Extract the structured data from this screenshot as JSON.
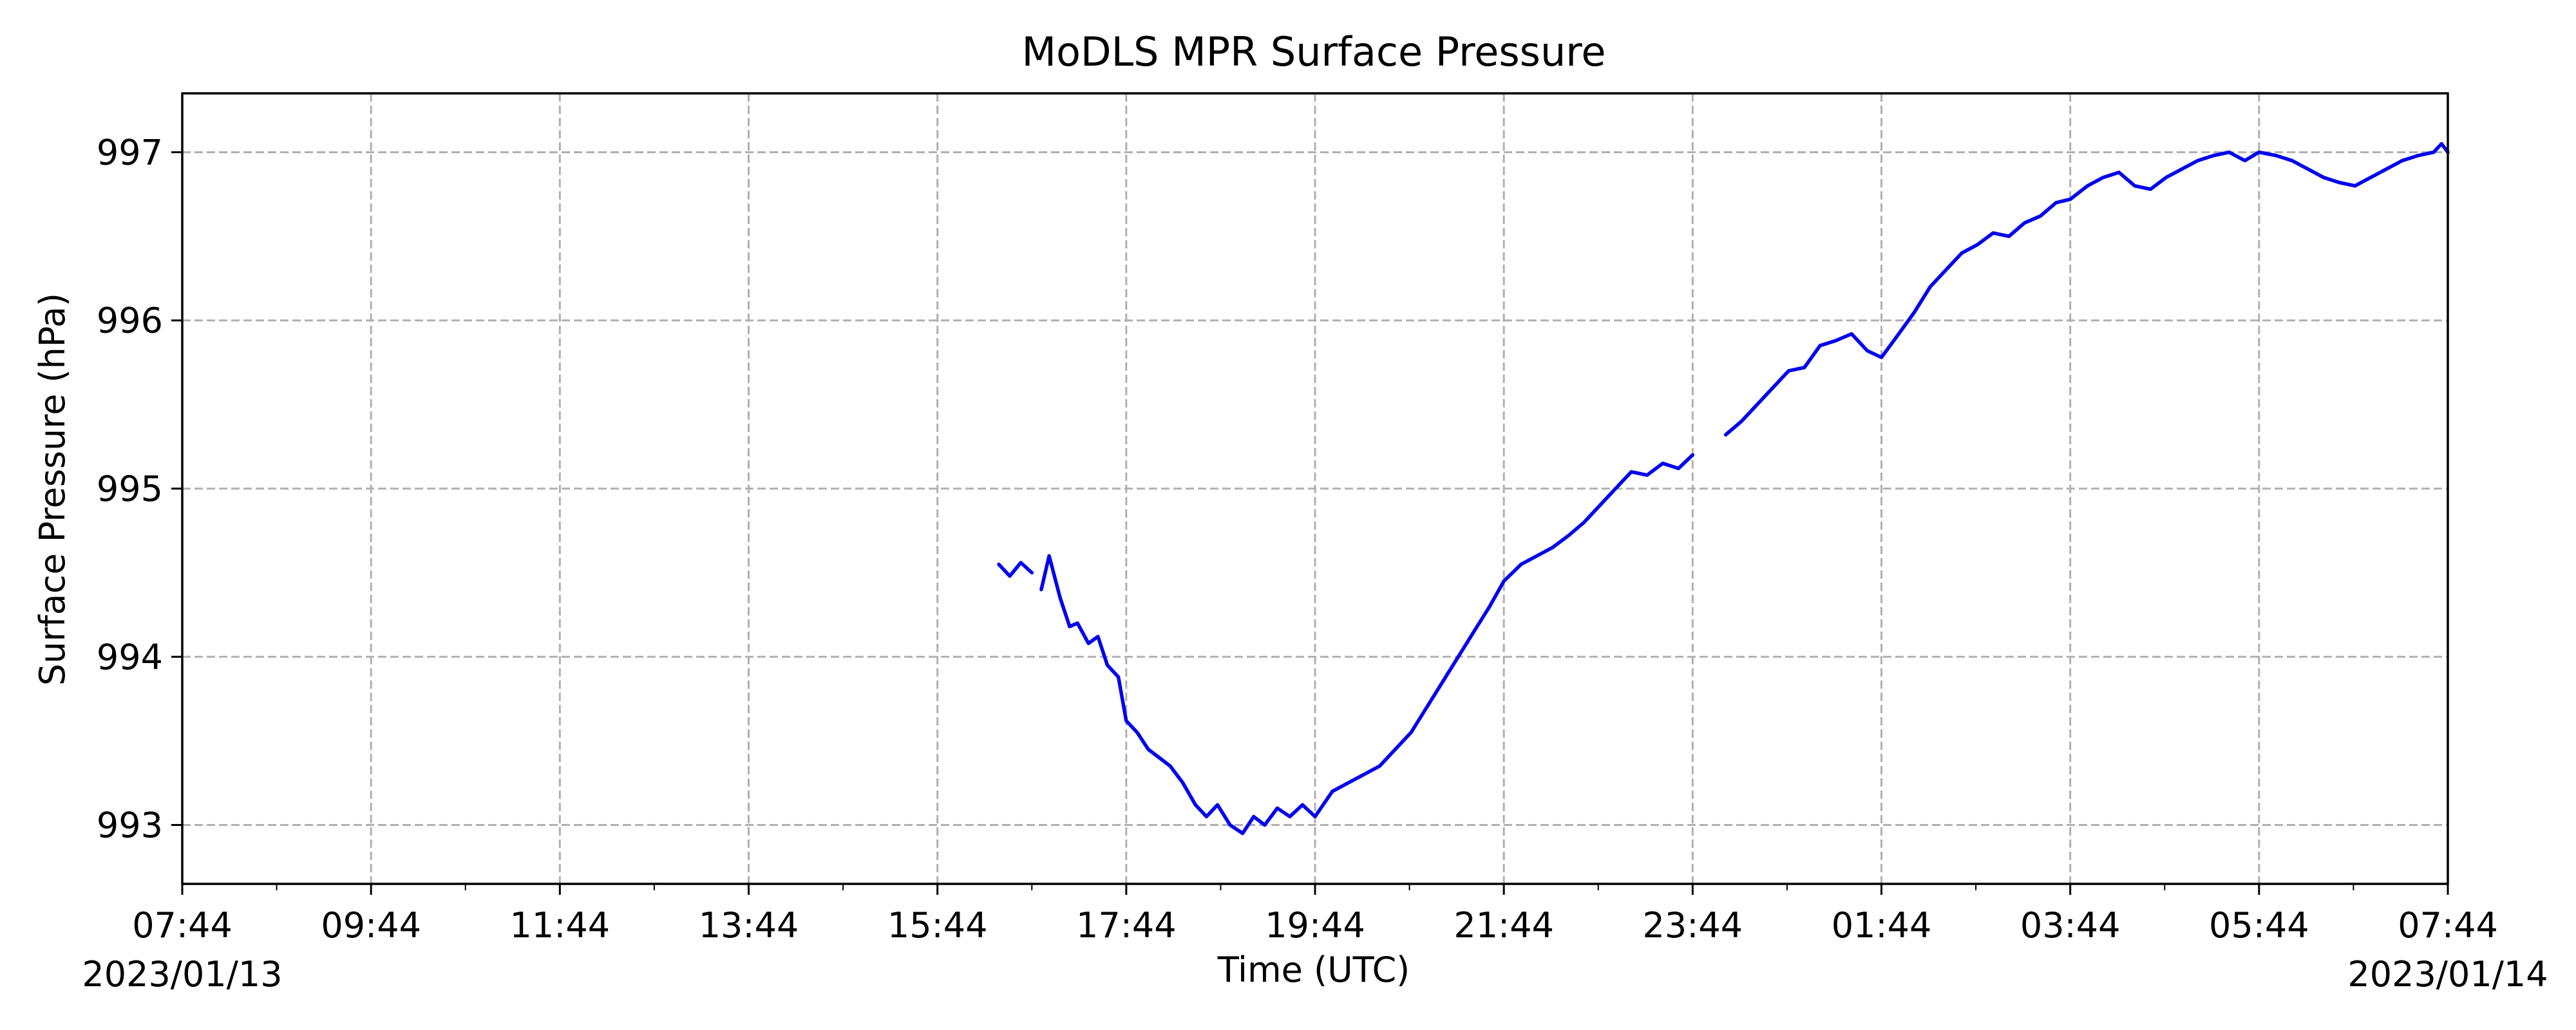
{
  "chart_data": {
    "type": "line",
    "title": "MoDLS MPR Surface Pressure",
    "xlabel": "Time (UTC)",
    "ylabel": "Surface Pressure (hPa)",
    "xlim": [
      "2023-01-13 07:44",
      "2023-01-14 07:44"
    ],
    "ylim": [
      992.65,
      997.35
    ],
    "grid": true,
    "x_ticks": [
      {
        "time": "2023-01-13 07:44",
        "label": "07:44"
      },
      {
        "time": "2023-01-13 09:44",
        "label": "09:44"
      },
      {
        "time": "2023-01-13 11:44",
        "label": "11:44"
      },
      {
        "time": "2023-01-13 13:44",
        "label": "13:44"
      },
      {
        "time": "2023-01-13 15:44",
        "label": "15:44"
      },
      {
        "time": "2023-01-13 17:44",
        "label": "17:44"
      },
      {
        "time": "2023-01-13 19:44",
        "label": "19:44"
      },
      {
        "time": "2023-01-13 21:44",
        "label": "21:44"
      },
      {
        "time": "2023-01-13 23:44",
        "label": "23:44"
      },
      {
        "time": "2023-01-14 01:44",
        "label": "01:44"
      },
      {
        "time": "2023-01-14 03:44",
        "label": "03:44"
      },
      {
        "time": "2023-01-14 05:44",
        "label": "05:44"
      },
      {
        "time": "2023-01-14 07:44",
        "label": "07:44"
      }
    ],
    "date_labels": {
      "start": "2023/01/13",
      "end": "2023/01/14"
    },
    "y_ticks": [
      993,
      994,
      995,
      996,
      997
    ],
    "series": [
      {
        "color": "#0000ee",
        "segments": [
          {
            "x": [
              "2023-01-13 16:23",
              "2023-01-13 16:30",
              "2023-01-13 16:37",
              "2023-01-13 16:44"
            ],
            "y": [
              994.55,
              994.48,
              994.56,
              994.5
            ]
          },
          {
            "x": [
              "2023-01-13 16:50",
              "2023-01-13 16:55",
              "2023-01-13 17:02",
              "2023-01-13 17:08",
              "2023-01-13 17:13",
              "2023-01-13 17:20",
              "2023-01-13 17:26",
              "2023-01-13 17:32",
              "2023-01-13 17:39",
              "2023-01-13 17:44",
              "2023-01-13 17:51",
              "2023-01-13 17:58",
              "2023-01-13 18:05",
              "2023-01-13 18:12",
              "2023-01-13 18:20",
              "2023-01-13 18:28",
              "2023-01-13 18:35",
              "2023-01-13 18:42",
              "2023-01-13 18:50",
              "2023-01-13 18:58",
              "2023-01-13 19:05",
              "2023-01-13 19:12",
              "2023-01-13 19:20",
              "2023-01-13 19:28",
              "2023-01-13 19:36",
              "2023-01-13 19:44",
              "2023-01-13 19:55",
              "2023-01-13 20:05",
              "2023-01-13 20:15",
              "2023-01-13 20:25",
              "2023-01-13 20:35",
              "2023-01-13 20:45",
              "2023-01-13 20:55",
              "2023-01-13 21:05",
              "2023-01-13 21:15",
              "2023-01-13 21:25",
              "2023-01-13 21:35",
              "2023-01-13 21:44",
              "2023-01-13 21:55",
              "2023-01-13 22:05",
              "2023-01-13 22:15",
              "2023-01-13 22:25",
              "2023-01-13 22:35",
              "2023-01-13 22:45",
              "2023-01-13 22:55",
              "2023-01-13 23:05",
              "2023-01-13 23:15",
              "2023-01-13 23:25",
              "2023-01-13 23:35",
              "2023-01-13 23:44"
            ],
            "y": [
              994.4,
              994.6,
              994.35,
              994.18,
              994.2,
              994.08,
              994.12,
              993.95,
              993.88,
              993.62,
              993.55,
              993.45,
              993.4,
              993.35,
              993.25,
              993.12,
              993.05,
              993.12,
              993.0,
              992.95,
              993.05,
              993.0,
              993.1,
              993.05,
              993.12,
              993.05,
              993.2,
              993.25,
              993.3,
              993.35,
              993.45,
              993.55,
              993.7,
              993.85,
              994.0,
              994.15,
              994.3,
              994.45,
              994.55,
              994.6,
              994.65,
              994.72,
              994.8,
              994.9,
              995.0,
              995.1,
              995.08,
              995.15,
              995.12,
              995.2
            ]
          },
          {
            "x": [
              "2023-01-14 00:05",
              "2023-01-14 00:15",
              "2023-01-14 00:25",
              "2023-01-14 00:35",
              "2023-01-14 00:45",
              "2023-01-14 00:55",
              "2023-01-14 01:05",
              "2023-01-14 01:15",
              "2023-01-14 01:25",
              "2023-01-14 01:35",
              "2023-01-14 01:44",
              "2023-01-14 01:55",
              "2023-01-14 02:05",
              "2023-01-14 02:15",
              "2023-01-14 02:25",
              "2023-01-14 02:35",
              "2023-01-14 02:45",
              "2023-01-14 02:55",
              "2023-01-14 03:05",
              "2023-01-14 03:15",
              "2023-01-14 03:25",
              "2023-01-14 03:35",
              "2023-01-14 03:44",
              "2023-01-14 03:55",
              "2023-01-14 04:05",
              "2023-01-14 04:15",
              "2023-01-14 04:25",
              "2023-01-14 04:35",
              "2023-01-14 04:45",
              "2023-01-14 04:55",
              "2023-01-14 05:05",
              "2023-01-14 05:15",
              "2023-01-14 05:25",
              "2023-01-14 05:35",
              "2023-01-14 05:44",
              "2023-01-14 05:55",
              "2023-01-14 06:05",
              "2023-01-14 06:15",
              "2023-01-14 06:25",
              "2023-01-14 06:35",
              "2023-01-14 06:45",
              "2023-01-14 06:55",
              "2023-01-14 07:05",
              "2023-01-14 07:15",
              "2023-01-14 07:25",
              "2023-01-14 07:35",
              "2023-01-14 07:40",
              "2023-01-14 07:44"
            ],
            "y": [
              995.32,
              995.4,
              995.5,
              995.6,
              995.7,
              995.72,
              995.85,
              995.88,
              995.92,
              995.82,
              995.78,
              995.92,
              996.05,
              996.2,
              996.3,
              996.4,
              996.45,
              996.52,
              996.5,
              996.58,
              996.62,
              996.7,
              996.72,
              996.8,
              996.85,
              996.88,
              996.8,
              996.78,
              996.85,
              996.9,
              996.95,
              996.98,
              997.0,
              996.95,
              997.0,
              996.98,
              996.95,
              996.9,
              996.85,
              996.82,
              996.8,
              996.85,
              996.9,
              996.95,
              996.98,
              997.0,
              997.05,
              997.0
            ]
          }
        ]
      }
    ]
  }
}
